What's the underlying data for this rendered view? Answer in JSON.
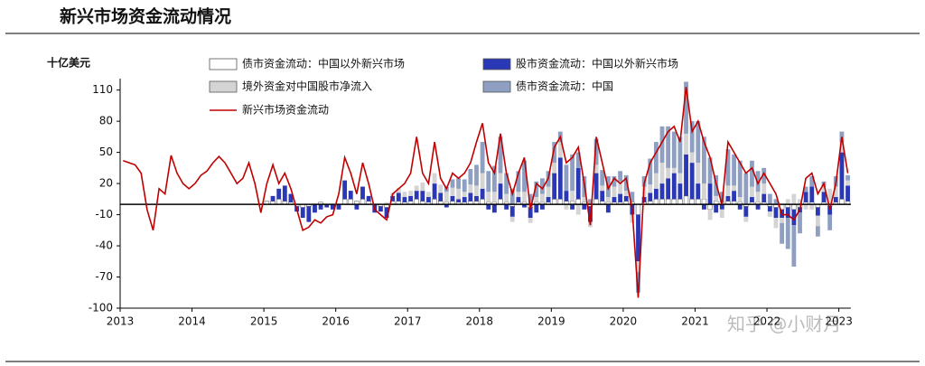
{
  "chart_data": {
    "type": "bar",
    "title": "新兴市场资金流动情况",
    "y_label": "十亿美元",
    "watermark": "知乎 @小财月",
    "categories": [
      "2013",
      null,
      null,
      null,
      null,
      null,
      null,
      null,
      null,
      null,
      null,
      null,
      "2014",
      null,
      null,
      null,
      null,
      null,
      null,
      null,
      null,
      null,
      null,
      null,
      "2015",
      null,
      null,
      null,
      null,
      null,
      null,
      null,
      null,
      null,
      null,
      null,
      "2016",
      null,
      null,
      null,
      null,
      null,
      null,
      null,
      null,
      null,
      null,
      null,
      "2017",
      null,
      null,
      null,
      null,
      null,
      null,
      null,
      null,
      null,
      null,
      null,
      "2018",
      null,
      null,
      null,
      null,
      null,
      null,
      null,
      null,
      null,
      null,
      null,
      "2019",
      null,
      null,
      null,
      null,
      null,
      null,
      null,
      null,
      null,
      null,
      null,
      "2020",
      null,
      null,
      null,
      null,
      null,
      null,
      null,
      null,
      null,
      null,
      null,
      "2021",
      null,
      null,
      null,
      null,
      null,
      null,
      null,
      null,
      null,
      null,
      null,
      "2022",
      null,
      null,
      null,
      null,
      null,
      null,
      null,
      null,
      null,
      null,
      null,
      "2023",
      null
    ],
    "ylim": [
      -100,
      121
    ],
    "yticks": [
      -100,
      -70,
      -40,
      -10,
      20,
      50,
      80,
      110
    ],
    "series": [
      {
        "name": "债市资金流动：中国以外新兴市场",
        "type": "bar",
        "color": "#ffffff",
        "values": [
          0,
          0,
          0,
          0,
          0,
          0,
          0,
          0,
          0,
          0,
          0,
          0,
          0,
          0,
          0,
          0,
          0,
          0,
          0,
          0,
          0,
          0,
          0,
          0,
          3,
          3,
          5,
          3,
          2,
          -2,
          -3,
          -2,
          0,
          2,
          0,
          0,
          0,
          5,
          5,
          3,
          5,
          3,
          0,
          -2,
          -3,
          3,
          3,
          2,
          3,
          5,
          3,
          2,
          5,
          3,
          2,
          3,
          2,
          2,
          3,
          3,
          5,
          2,
          2,
          5,
          2,
          -2,
          2,
          2,
          -3,
          2,
          2,
          2,
          5,
          5,
          3,
          3,
          5,
          2,
          -2,
          5,
          3,
          2,
          2,
          2,
          3,
          2,
          -10,
          2,
          3,
          5,
          5,
          5,
          5,
          5,
          8,
          5,
          5,
          5,
          -5,
          3,
          2,
          3,
          3,
          2,
          -2,
          2,
          2,
          2,
          -2,
          -3,
          -5,
          -3,
          -5,
          -3,
          2,
          2,
          -3,
          2,
          -2,
          2,
          5,
          3
        ]
      },
      {
        "name": "股市资金流动：中国以外新兴市场",
        "type": "bar",
        "color": "#2b38b5",
        "values": [
          0,
          0,
          0,
          0,
          0,
          0,
          0,
          0,
          0,
          0,
          0,
          0,
          0,
          0,
          0,
          0,
          0,
          0,
          0,
          0,
          0,
          0,
          0,
          0,
          0,
          5,
          10,
          15,
          8,
          -5,
          -10,
          -15,
          -8,
          -5,
          -3,
          -5,
          -5,
          18,
          8,
          -5,
          12,
          5,
          -8,
          -5,
          -10,
          5,
          8,
          5,
          5,
          8,
          10,
          5,
          15,
          8,
          -3,
          5,
          3,
          5,
          8,
          5,
          10,
          -5,
          -8,
          15,
          -5,
          -10,
          5,
          -3,
          -10,
          -8,
          -5,
          5,
          25,
          40,
          10,
          -5,
          30,
          -5,
          -15,
          25,
          10,
          -8,
          5,
          8,
          5,
          -10,
          -45,
          5,
          8,
          10,
          15,
          20,
          25,
          15,
          40,
          35,
          15,
          -5,
          20,
          -8,
          -5,
          5,
          10,
          -5,
          -10,
          5,
          -5,
          8,
          -5,
          -10,
          -8,
          -10,
          -15,
          -5,
          10,
          15,
          -8,
          10,
          -8,
          5,
          45,
          15
        ]
      },
      {
        "name": "境外资金对中国股市净流入",
        "type": "bar",
        "color": "#d4d4d4",
        "values": [
          0,
          0,
          0,
          0,
          0,
          0,
          0,
          0,
          0,
          0,
          0,
          0,
          0,
          0,
          0,
          0,
          0,
          0,
          0,
          0,
          0,
          0,
          0,
          0,
          0,
          0,
          0,
          0,
          0,
          0,
          0,
          0,
          0,
          0,
          0,
          0,
          0,
          0,
          0,
          0,
          0,
          0,
          0,
          0,
          2,
          3,
          5,
          5,
          5,
          5,
          8,
          5,
          10,
          8,
          10,
          8,
          10,
          5,
          8,
          10,
          15,
          10,
          10,
          10,
          8,
          -5,
          5,
          10,
          -5,
          5,
          8,
          10,
          10,
          15,
          -5,
          10,
          -10,
          5,
          -5,
          8,
          5,
          5,
          10,
          12,
          5,
          -8,
          -10,
          10,
          8,
          15,
          20,
          10,
          5,
          10,
          20,
          10,
          20,
          15,
          -10,
          5,
          -8,
          10,
          5,
          5,
          -5,
          10,
          10,
          10,
          -5,
          -10,
          -5,
          5,
          10,
          5,
          -5,
          -5,
          -10,
          5,
          15,
          10,
          10,
          5
        ]
      },
      {
        "name": "债市资金流动：中国",
        "type": "bar",
        "color": "#8e9fc2",
        "values": [
          0,
          0,
          0,
          0,
          0,
          0,
          0,
          0,
          0,
          0,
          0,
          0,
          0,
          0,
          0,
          0,
          0,
          0,
          0,
          0,
          0,
          0,
          0,
          0,
          0,
          0,
          0,
          0,
          0,
          0,
          0,
          0,
          0,
          0,
          0,
          0,
          0,
          0,
          0,
          0,
          0,
          0,
          0,
          0,
          0,
          0,
          0,
          0,
          0,
          0,
          0,
          0,
          0,
          0,
          5,
          8,
          10,
          12,
          15,
          20,
          30,
          20,
          25,
          35,
          20,
          15,
          20,
          30,
          10,
          15,
          15,
          15,
          20,
          10,
          25,
          35,
          15,
          20,
          5,
          25,
          15,
          20,
          10,
          10,
          15,
          10,
          -20,
          10,
          25,
          30,
          35,
          40,
          35,
          35,
          50,
          30,
          40,
          45,
          25,
          20,
          10,
          35,
          30,
          35,
          30,
          25,
          20,
          15,
          10,
          5,
          -20,
          -30,
          -40,
          -20,
          5,
          10,
          -10,
          5,
          -15,
          10,
          10,
          5
        ]
      },
      {
        "name": "新兴市场资金流动",
        "type": "line",
        "color": "#c00000",
        "values": [
          42,
          40,
          38,
          30,
          -5,
          -25,
          15,
          10,
          47,
          30,
          20,
          15,
          20,
          28,
          32,
          40,
          46,
          40,
          30,
          20,
          25,
          40,
          20,
          -8,
          20,
          38,
          20,
          30,
          15,
          -5,
          -25,
          -22,
          -15,
          -18,
          -12,
          -10,
          10,
          45,
          30,
          10,
          40,
          20,
          -5,
          -10,
          -15,
          10,
          15,
          20,
          30,
          65,
          30,
          20,
          60,
          25,
          15,
          30,
          25,
          30,
          40,
          60,
          78,
          40,
          30,
          68,
          30,
          10,
          30,
          45,
          -5,
          20,
          15,
          25,
          55,
          65,
          40,
          45,
          55,
          20,
          -20,
          65,
          40,
          15,
          25,
          20,
          25,
          -5,
          -90,
          20,
          40,
          50,
          60,
          70,
          75,
          60,
          113,
          70,
          80,
          60,
          45,
          20,
          0,
          60,
          50,
          40,
          30,
          35,
          20,
          30,
          20,
          10,
          -10,
          -10,
          -15,
          -5,
          25,
          30,
          10,
          20,
          -5,
          20,
          65,
          30
        ]
      }
    ]
  }
}
